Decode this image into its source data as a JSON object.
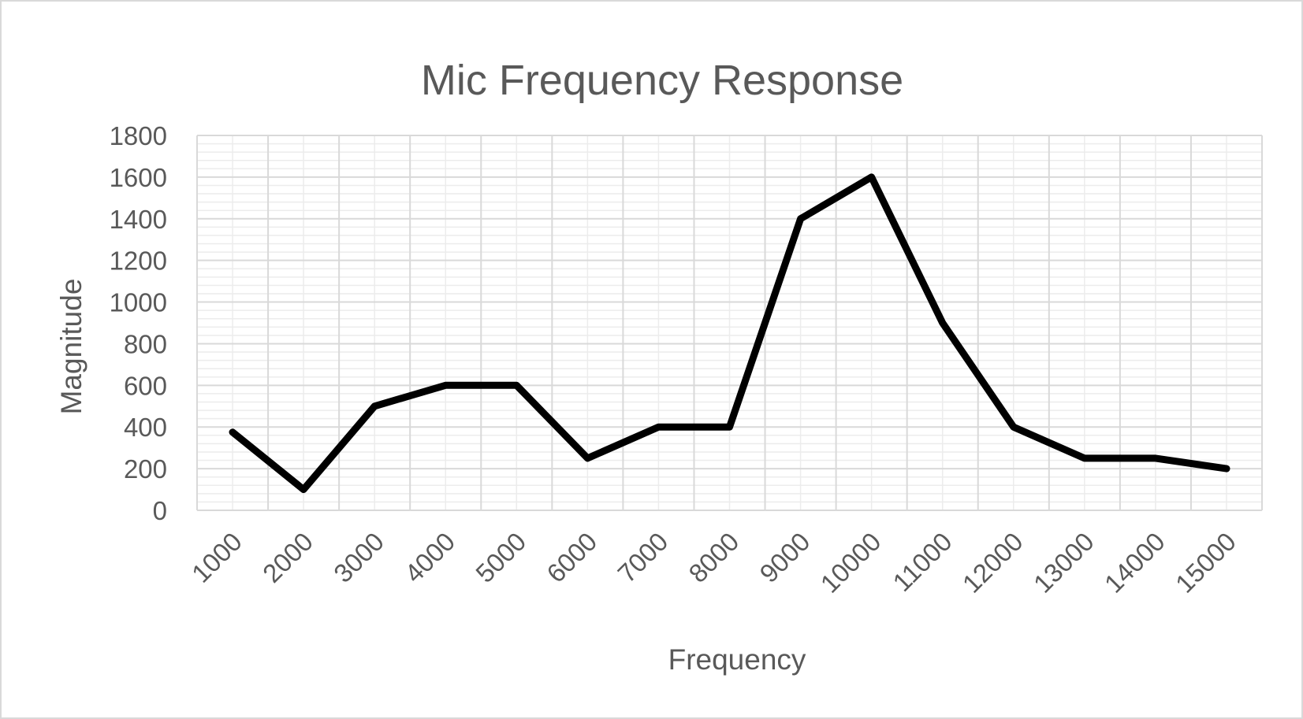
{
  "chart_data": {
    "type": "line",
    "title": "Mic Frequency Response",
    "xlabel": "Frequency",
    "ylabel": "Magnitude",
    "categories": [
      "1000",
      "2000",
      "3000",
      "4000",
      "5000",
      "6000",
      "7000",
      "8000",
      "9000",
      "10000",
      "11000",
      "12000",
      "13000",
      "14000",
      "15000"
    ],
    "series": [
      {
        "values": [
          375,
          100,
          500,
          600,
          600,
          250,
          400,
          400,
          1400,
          1600,
          900,
          400,
          250,
          250,
          200
        ]
      }
    ],
    "ylim": [
      0,
      1800
    ],
    "ytick_step": 200,
    "yticks": [
      "0",
      "200",
      "400",
      "600",
      "800",
      "1000",
      "1200",
      "1400",
      "1600",
      "1800"
    ],
    "grid": true,
    "minor_grid": true,
    "legend": "none",
    "colors": {
      "line": "#000000",
      "major_grid": "#d9d9d9",
      "minor_grid": "#ececec",
      "text": "#595959",
      "border": "#d9d9d9"
    }
  }
}
